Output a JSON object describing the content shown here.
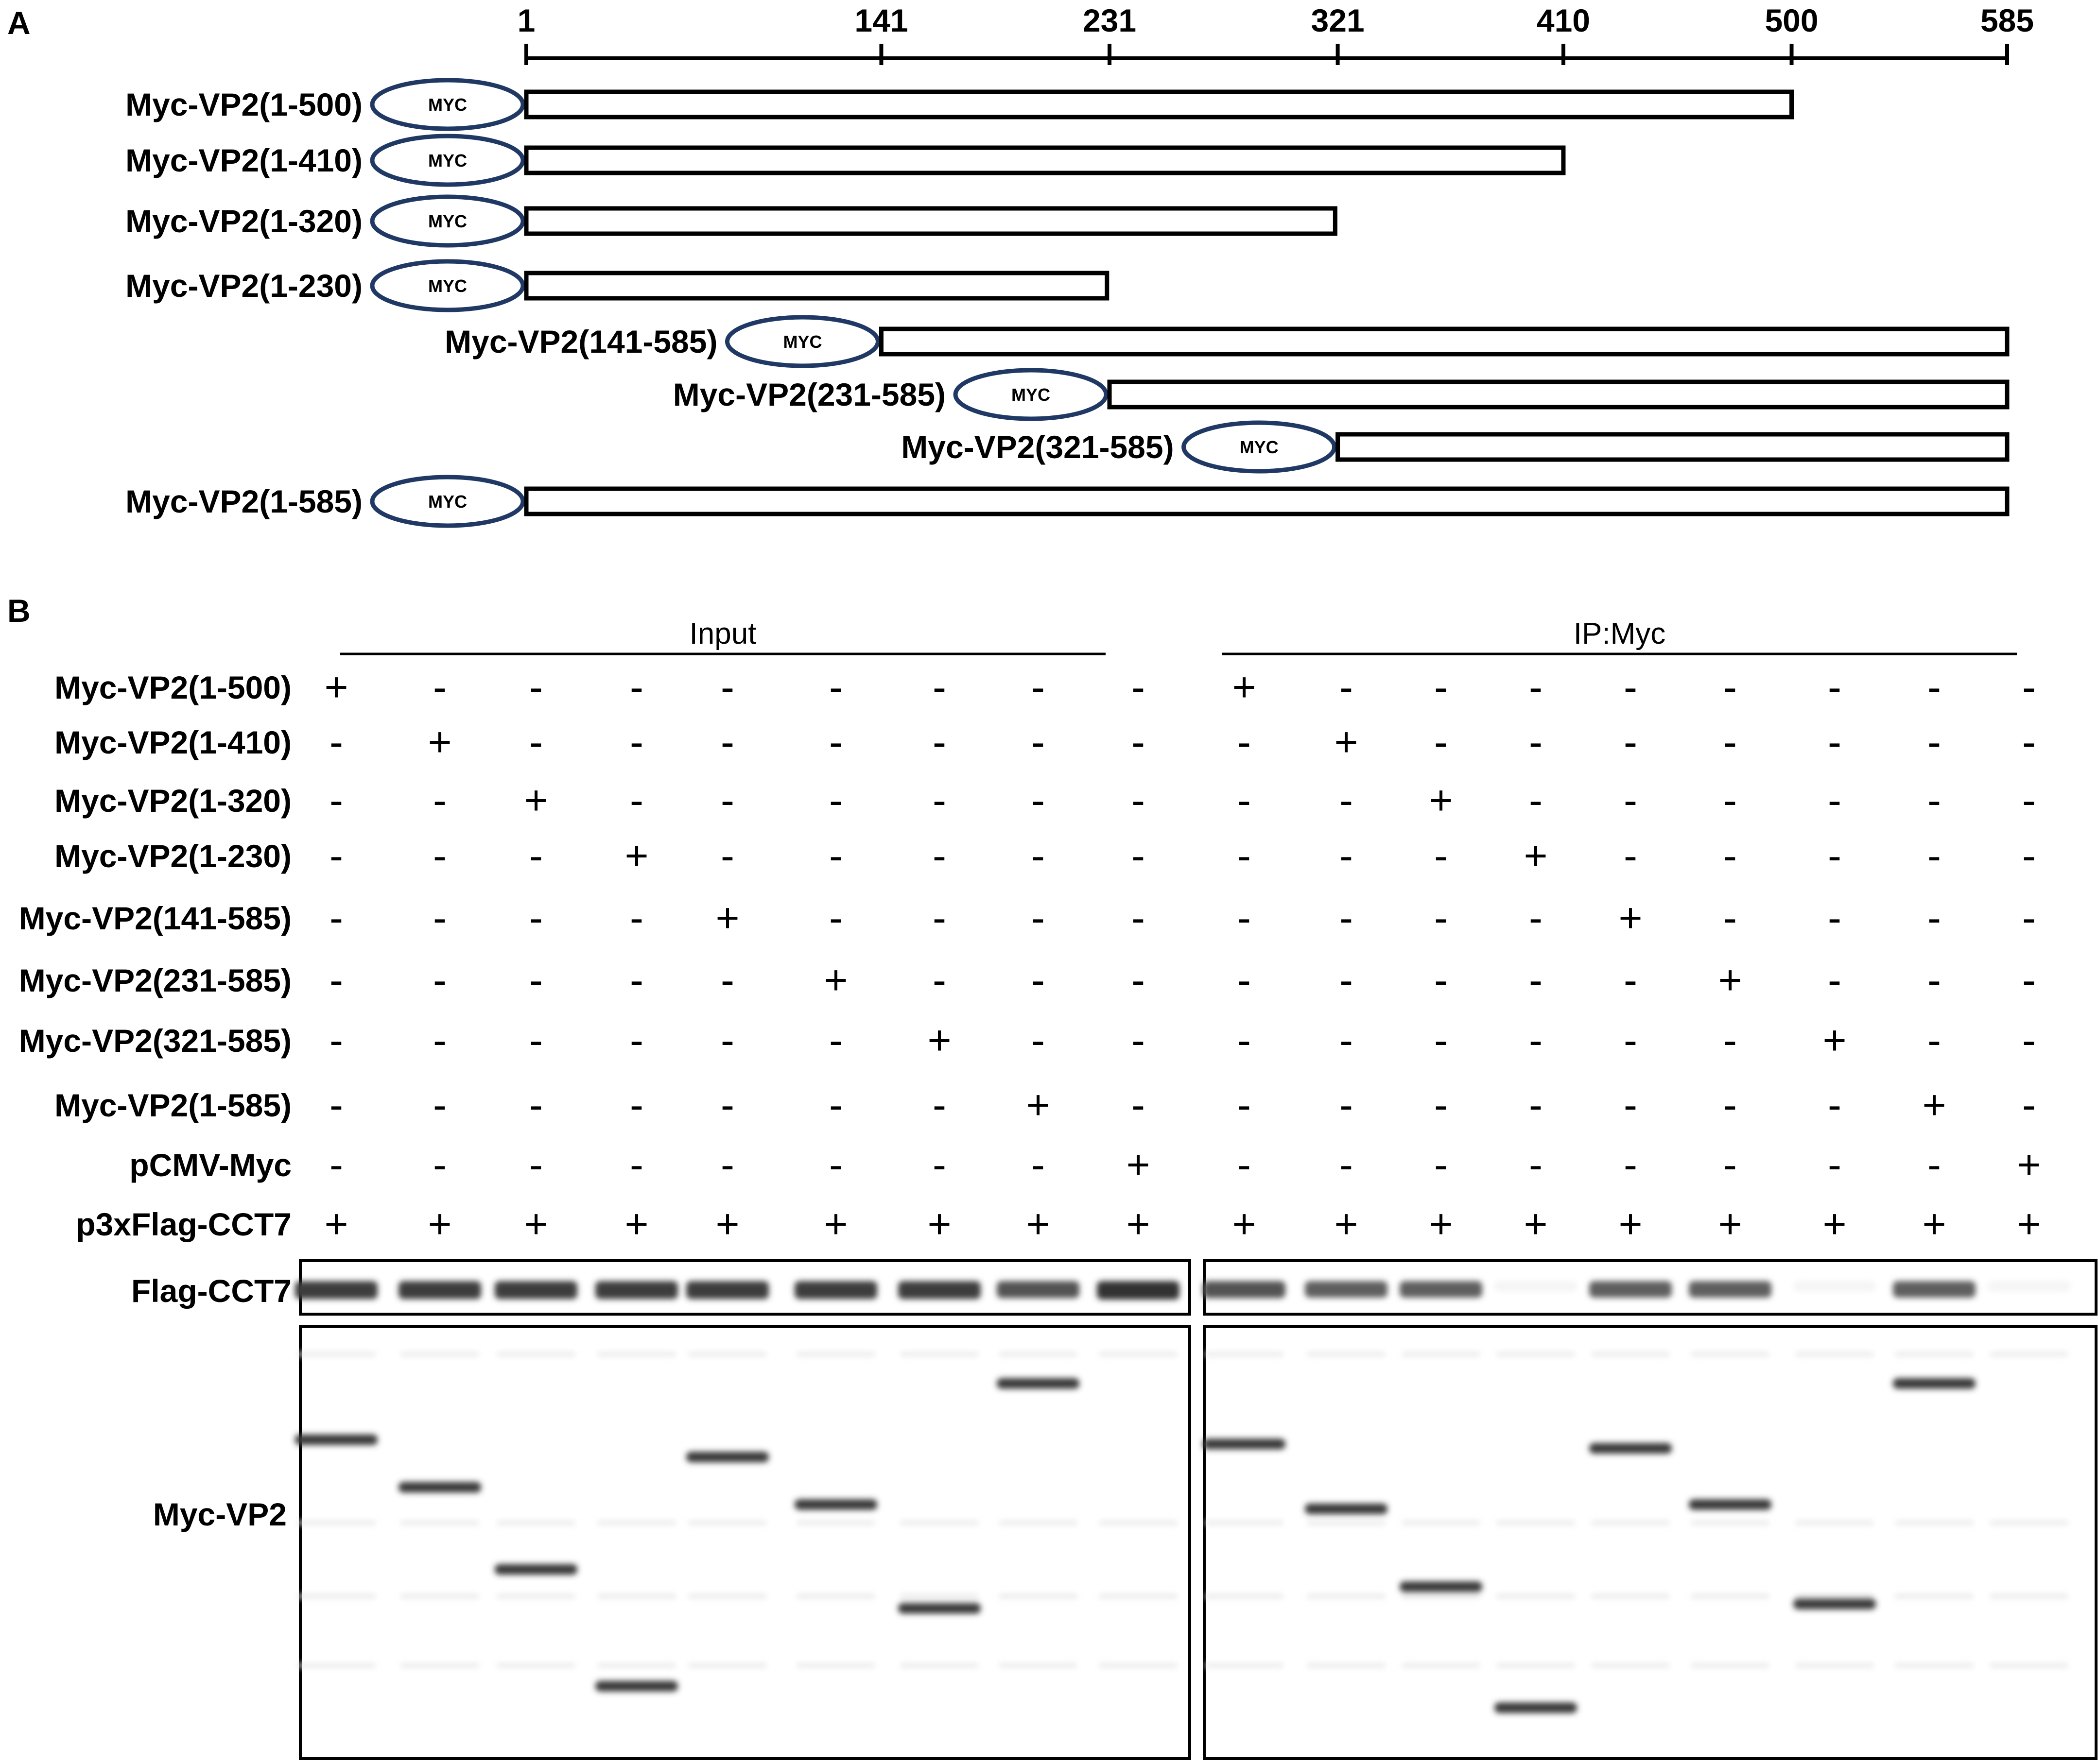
{
  "panel_a": {
    "letter": "A",
    "scale": {
      "min": 1,
      "max": 585,
      "ticks": [
        "1",
        "141",
        "231",
        "321",
        "410",
        "500",
        "585"
      ]
    },
    "tag_label": "MYC",
    "constructs": [
      {
        "label": "Myc-VP2(1-500)",
        "start": 1,
        "end": 500
      },
      {
        "label": "Myc-VP2(1-410)",
        "start": 1,
        "end": 410
      },
      {
        "label": "Myc-VP2(1-320)",
        "start": 1,
        "end": 320
      },
      {
        "label": "Myc-VP2(1-230)",
        "start": 1,
        "end": 230
      },
      {
        "label": "Myc-VP2(141-585)",
        "start": 141,
        "end": 585
      },
      {
        "label": "Myc-VP2(231-585)",
        "start": 231,
        "end": 585
      },
      {
        "label": "Myc-VP2(321-585)",
        "start": 321,
        "end": 585
      },
      {
        "label": "Myc-VP2(1-585)",
        "start": 1,
        "end": 585
      }
    ]
  },
  "panel_b": {
    "letter": "B",
    "groups": [
      "Input",
      "IP:Myc"
    ],
    "rows": [
      {
        "label": "Myc-VP2(1-500)",
        "lane": 0
      },
      {
        "label": "Myc-VP2(1-410)",
        "lane": 1
      },
      {
        "label": "Myc-VP2(1-320)",
        "lane": 2
      },
      {
        "label": "Myc-VP2(1-230)",
        "lane": 3
      },
      {
        "label": "Myc-VP2(141-585)",
        "lane": 4
      },
      {
        "label": "Myc-VP2(231-585)",
        "lane": 5
      },
      {
        "label": "Myc-VP2(321-585)",
        "lane": 6
      },
      {
        "label": "Myc-VP2(1-585)",
        "lane": 7
      },
      {
        "label": "pCMV-Myc",
        "lane": 8
      },
      {
        "label": "p3xFlag-CCT7",
        "lane": -1
      }
    ],
    "plus_symbol": "+",
    "minus_symbol": "-",
    "blot_labels": [
      "Flag-CCT7",
      "Myc-VP2"
    ],
    "flag_band_intensity": {
      "input": [
        0.85,
        0.85,
        0.85,
        0.85,
        0.85,
        0.85,
        0.85,
        0.75,
        0.9
      ],
      "ip": [
        0.75,
        0.7,
        0.7,
        0.05,
        0.7,
        0.7,
        0.05,
        0.7,
        0.05
      ]
    },
    "vp2_band_mobility": {
      "input": [
        0.25,
        0.36,
        0.55,
        0.82,
        0.29,
        0.4,
        0.64,
        0.12,
        null
      ],
      "ip": [
        0.26,
        0.41,
        0.59,
        0.87,
        0.27,
        0.4,
        0.63,
        0.12,
        null
      ]
    }
  }
}
